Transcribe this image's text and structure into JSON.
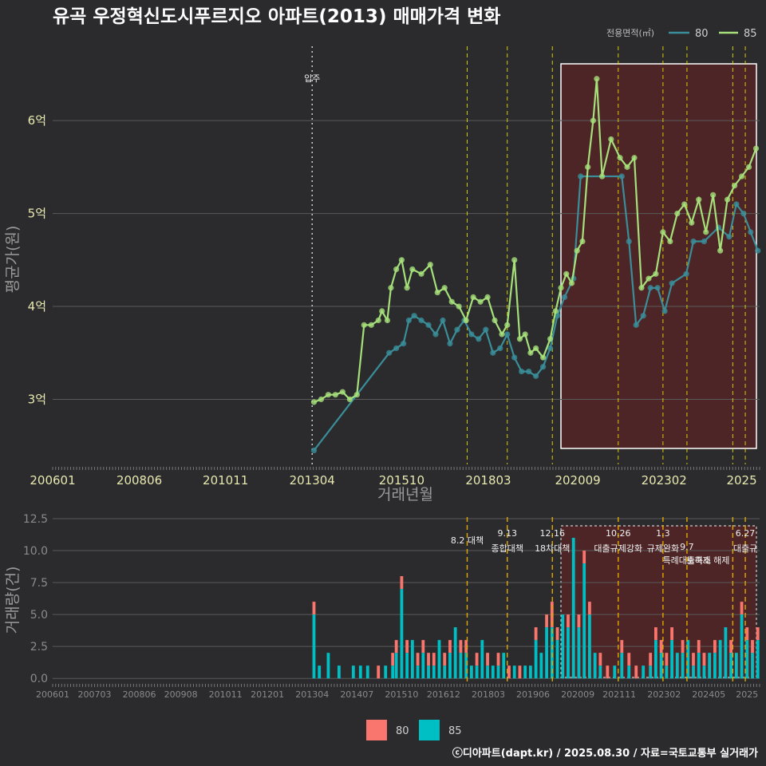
{
  "title": "유곡 우정혁신도시푸르지오 아파트(2013) 매매가격 변화",
  "footer": "ⓒ디아파트(dapt.kr) / 2025.08.30 / 자료=국토교통부 실거래가",
  "colors": {
    "background": "#2b2b2d",
    "series80": "#3a8e9a",
    "series85": "#a6e07a",
    "bar80": "#f8766d",
    "bar85": "#00bfc4",
    "policy_line": "#f5e400",
    "highlight_fill": "#5a2424"
  },
  "chart_data": [
    {
      "type": "line",
      "name": "price",
      "ylabel": "평균가(원)",
      "xlabel": "거래년월",
      "x_ticks": [
        "200601",
        "200806",
        "201011",
        "201304",
        "201510",
        "201803",
        "202009",
        "202302",
        "2025"
      ],
      "y_ticks": [
        "3억",
        "4억",
        "5억",
        "6억"
      ],
      "y_tick_values": [
        3.0,
        4.0,
        5.0,
        6.0
      ],
      "y_range": [
        2.3,
        6.8
      ],
      "x_range": [
        2006.0,
        2025.75
      ],
      "legend_title": "전용면적(㎡)",
      "legend": [
        "80",
        "85"
      ],
      "move_in_label": "입주",
      "move_in_x": 2013.25,
      "policy_x": [
        2017.58,
        2018.7,
        2019.96,
        2021.8,
        2023.05,
        2023.72,
        2025.0,
        2025.35
      ],
      "highlight_range": [
        2020.2,
        2025.75
      ],
      "series": [
        {
          "name": "80",
          "points": [
            [
              2013.3,
              2.45
            ],
            [
              2015.4,
              3.5
            ],
            [
              2015.6,
              3.55
            ],
            [
              2015.8,
              3.6
            ],
            [
              2015.95,
              3.85
            ],
            [
              2016.1,
              3.9
            ],
            [
              2016.3,
              3.85
            ],
            [
              2016.5,
              3.8
            ],
            [
              2016.7,
              3.7
            ],
            [
              2016.9,
              3.85
            ],
            [
              2017.1,
              3.6
            ],
            [
              2017.3,
              3.75
            ],
            [
              2017.5,
              3.85
            ],
            [
              2017.7,
              3.7
            ],
            [
              2017.9,
              3.65
            ],
            [
              2018.1,
              3.75
            ],
            [
              2018.3,
              3.5
            ],
            [
              2018.5,
              3.55
            ],
            [
              2018.7,
              3.7
            ],
            [
              2018.9,
              3.45
            ],
            [
              2019.1,
              3.3
            ],
            [
              2019.3,
              3.3
            ],
            [
              2019.5,
              3.25
            ],
            [
              2019.7,
              3.35
            ],
            [
              2019.9,
              3.55
            ],
            [
              2020.1,
              3.9
            ],
            [
              2020.3,
              4.1
            ],
            [
              2020.55,
              4.3
            ],
            [
              2020.75,
              5.4
            ],
            [
              2021.9,
              5.4
            ],
            [
              2022.1,
              4.7
            ],
            [
              2022.3,
              3.8
            ],
            [
              2022.5,
              3.9
            ],
            [
              2022.7,
              4.2
            ],
            [
              2022.9,
              4.2
            ],
            [
              2023.1,
              3.95
            ],
            [
              2023.3,
              4.25
            ],
            [
              2023.7,
              4.35
            ],
            [
              2023.9,
              4.7
            ],
            [
              2024.2,
              4.7
            ],
            [
              2024.6,
              4.85
            ],
            [
              2024.9,
              4.75
            ],
            [
              2025.1,
              5.1
            ],
            [
              2025.3,
              5.0
            ],
            [
              2025.5,
              4.8
            ],
            [
              2025.7,
              4.6
            ]
          ]
        },
        {
          "name": "85",
          "points": [
            [
              2013.3,
              2.97
            ],
            [
              2013.5,
              3.0
            ],
            [
              2013.7,
              3.05
            ],
            [
              2013.9,
              3.05
            ],
            [
              2014.1,
              3.08
            ],
            [
              2014.3,
              3.0
            ],
            [
              2014.5,
              3.05
            ],
            [
              2014.7,
              3.8
            ],
            [
              2014.9,
              3.8
            ],
            [
              2015.1,
              3.85
            ],
            [
              2015.2,
              3.95
            ],
            [
              2015.35,
              3.85
            ],
            [
              2015.45,
              4.2
            ],
            [
              2015.6,
              4.4
            ],
            [
              2015.75,
              4.5
            ],
            [
              2015.9,
              4.2
            ],
            [
              2016.05,
              4.4
            ],
            [
              2016.3,
              4.35
            ],
            [
              2016.55,
              4.45
            ],
            [
              2016.75,
              4.15
            ],
            [
              2016.95,
              4.2
            ],
            [
              2017.15,
              4.05
            ],
            [
              2017.35,
              4.0
            ],
            [
              2017.55,
              3.85
            ],
            [
              2017.75,
              4.1
            ],
            [
              2017.95,
              4.05
            ],
            [
              2018.15,
              4.1
            ],
            [
              2018.35,
              3.85
            ],
            [
              2018.55,
              3.7
            ],
            [
              2018.7,
              3.8
            ],
            [
              2018.9,
              4.5
            ],
            [
              2019.05,
              3.65
            ],
            [
              2019.2,
              3.7
            ],
            [
              2019.35,
              3.5
            ],
            [
              2019.5,
              3.55
            ],
            [
              2019.7,
              3.45
            ],
            [
              2019.9,
              3.65
            ],
            [
              2020.05,
              3.95
            ],
            [
              2020.2,
              4.2
            ],
            [
              2020.35,
              4.35
            ],
            [
              2020.5,
              4.25
            ],
            [
              2020.65,
              4.6
            ],
            [
              2020.8,
              4.7
            ],
            [
              2020.95,
              5.5
            ],
            [
              2021.1,
              6.0
            ],
            [
              2021.2,
              6.45
            ],
            [
              2021.35,
              5.4
            ],
            [
              2021.6,
              5.8
            ],
            [
              2021.85,
              5.6
            ],
            [
              2022.05,
              5.5
            ],
            [
              2022.25,
              5.6
            ],
            [
              2022.45,
              4.2
            ],
            [
              2022.65,
              4.3
            ],
            [
              2022.85,
              4.35
            ],
            [
              2023.05,
              4.8
            ],
            [
              2023.25,
              4.7
            ],
            [
              2023.45,
              5.0
            ],
            [
              2023.65,
              5.1
            ],
            [
              2023.85,
              4.9
            ],
            [
              2024.05,
              5.15
            ],
            [
              2024.25,
              4.8
            ],
            [
              2024.45,
              5.2
            ],
            [
              2024.65,
              4.6
            ],
            [
              2024.85,
              5.15
            ],
            [
              2025.05,
              5.3
            ],
            [
              2025.25,
              5.4
            ],
            [
              2025.45,
              5.5
            ],
            [
              2025.65,
              5.7
            ]
          ]
        }
      ]
    },
    {
      "type": "bar",
      "name": "volume",
      "ylabel": "거래량(건)",
      "y_ticks": [
        "0.0",
        "2.5",
        "5.0",
        "7.5",
        "10.0",
        "12.5"
      ],
      "y_tick_values": [
        0,
        2.5,
        5,
        7.5,
        10,
        12.5
      ],
      "y_range": [
        -0.3,
        13
      ],
      "x_ticks": [
        "200601",
        "200703",
        "200806",
        "200908",
        "201011",
        "201201",
        "201304",
        "201407",
        "201510",
        "201612",
        "201803",
        "201906",
        "202009",
        "202111",
        "202302",
        "202405",
        "2025"
      ],
      "legend": [
        "80",
        "85"
      ],
      "policies": [
        {
          "date": "8.2",
          "label": "8.2 대책"
        },
        {
          "date": "9.13",
          "label": "종합대책"
        },
        {
          "date": "12.16",
          "label": "18차대책"
        },
        {
          "date": "10.26",
          "label": "대출규제강화"
        },
        {
          "date": "1.3",
          "label": "규제완화"
        },
        {
          "date": "9.7",
          "label": "특례대출축소"
        },
        {
          "date": "토허제 해제",
          "label": "토허제 해제"
        },
        {
          "date": "6.27",
          "label": "대출규"
        }
      ],
      "bars": [
        {
          "x": 2013.3,
          "s80": 1,
          "s85": 5
        },
        {
          "x": 2013.45,
          "s80": 0,
          "s85": 1
        },
        {
          "x": 2013.7,
          "s80": 0,
          "s85": 2
        },
        {
          "x": 2014.0,
          "s80": 0,
          "s85": 1
        },
        {
          "x": 2014.4,
          "s80": 0,
          "s85": 1
        },
        {
          "x": 2014.6,
          "s80": 0,
          "s85": 1
        },
        {
          "x": 2014.8,
          "s80": 0,
          "s85": 1
        },
        {
          "x": 2015.1,
          "s80": 1,
          "s85": 0
        },
        {
          "x": 2015.3,
          "s80": 0,
          "s85": 1
        },
        {
          "x": 2015.5,
          "s80": 1,
          "s85": 1
        },
        {
          "x": 2015.6,
          "s80": 1,
          "s85": 2
        },
        {
          "x": 2015.75,
          "s80": 1,
          "s85": 7
        },
        {
          "x": 2015.9,
          "s80": 1,
          "s85": 2
        },
        {
          "x": 2016.05,
          "s80": 0,
          "s85": 3
        },
        {
          "x": 2016.2,
          "s80": 1,
          "s85": 1
        },
        {
          "x": 2016.35,
          "s80": 1,
          "s85": 2
        },
        {
          "x": 2016.5,
          "s80": 1,
          "s85": 1
        },
        {
          "x": 2016.65,
          "s80": 1,
          "s85": 1
        },
        {
          "x": 2016.8,
          "s80": 0,
          "s85": 3
        },
        {
          "x": 2016.95,
          "s80": 1,
          "s85": 1
        },
        {
          "x": 2017.1,
          "s80": 1,
          "s85": 2
        },
        {
          "x": 2017.25,
          "s80": 0,
          "s85": 4
        },
        {
          "x": 2017.4,
          "s80": 1,
          "s85": 2
        },
        {
          "x": 2017.55,
          "s80": 1,
          "s85": 2
        },
        {
          "x": 2017.7,
          "s80": 0,
          "s85": 1
        },
        {
          "x": 2017.85,
          "s80": 1,
          "s85": 1
        },
        {
          "x": 2018.0,
          "s80": 0,
          "s85": 3
        },
        {
          "x": 2018.15,
          "s80": 1,
          "s85": 1
        },
        {
          "x": 2018.3,
          "s80": 0,
          "s85": 1
        },
        {
          "x": 2018.45,
          "s80": 1,
          "s85": 1
        },
        {
          "x": 2018.6,
          "s80": 0,
          "s85": 2
        },
        {
          "x": 2018.75,
          "s80": 1,
          "s85": 0
        },
        {
          "x": 2018.9,
          "s80": 0,
          "s85": 1
        },
        {
          "x": 2019.05,
          "s80": 1,
          "s85": 0
        },
        {
          "x": 2019.2,
          "s80": 0,
          "s85": 1
        },
        {
          "x": 2019.35,
          "s80": 0,
          "s85": 1
        },
        {
          "x": 2019.5,
          "s80": 1,
          "s85": 3
        },
        {
          "x": 2019.65,
          "s80": 0,
          "s85": 2
        },
        {
          "x": 2019.8,
          "s80": 1,
          "s85": 4
        },
        {
          "x": 2019.95,
          "s80": 2,
          "s85": 4
        },
        {
          "x": 2020.1,
          "s80": 1,
          "s85": 3
        },
        {
          "x": 2020.25,
          "s80": 0,
          "s85": 5
        },
        {
          "x": 2020.4,
          "s80": 1,
          "s85": 4
        },
        {
          "x": 2020.55,
          "s80": 0,
          "s85": 11
        },
        {
          "x": 2020.7,
          "s80": 1,
          "s85": 4
        },
        {
          "x": 2020.85,
          "s80": 1,
          "s85": 9
        },
        {
          "x": 2021.0,
          "s80": 1,
          "s85": 5
        },
        {
          "x": 2021.15,
          "s80": 0,
          "s85": 2
        },
        {
          "x": 2021.3,
          "s80": 1,
          "s85": 1
        },
        {
          "x": 2021.5,
          "s80": 1,
          "s85": 0
        },
        {
          "x": 2021.7,
          "s80": 0,
          "s85": 1
        },
        {
          "x": 2021.9,
          "s80": 1,
          "s85": 2
        },
        {
          "x": 2022.1,
          "s80": 1,
          "s85": 1
        },
        {
          "x": 2022.3,
          "s80": 1,
          "s85": 0
        },
        {
          "x": 2022.5,
          "s80": 0,
          "s85": 1
        },
        {
          "x": 2022.7,
          "s80": 1,
          "s85": 1
        },
        {
          "x": 2022.85,
          "s80": 1,
          "s85": 3
        },
        {
          "x": 2023.0,
          "s80": 1,
          "s85": 2
        },
        {
          "x": 2023.15,
          "s80": 1,
          "s85": 1
        },
        {
          "x": 2023.3,
          "s80": 1,
          "s85": 3
        },
        {
          "x": 2023.45,
          "s80": 0,
          "s85": 2
        },
        {
          "x": 2023.6,
          "s80": 1,
          "s85": 2
        },
        {
          "x": 2023.75,
          "s80": 0,
          "s85": 3
        },
        {
          "x": 2023.9,
          "s80": 1,
          "s85": 1
        },
        {
          "x": 2024.05,
          "s80": 1,
          "s85": 2
        },
        {
          "x": 2024.2,
          "s80": 1,
          "s85": 1
        },
        {
          "x": 2024.35,
          "s80": 0,
          "s85": 2
        },
        {
          "x": 2024.5,
          "s80": 1,
          "s85": 2
        },
        {
          "x": 2024.65,
          "s80": 0,
          "s85": 3
        },
        {
          "x": 2024.8,
          "s80": 0,
          "s85": 4
        },
        {
          "x": 2024.95,
          "s80": 1,
          "s85": 2
        },
        {
          "x": 2025.1,
          "s80": 0,
          "s85": 2
        },
        {
          "x": 2025.25,
          "s80": 1,
          "s85": 5
        },
        {
          "x": 2025.4,
          "s80": 1,
          "s85": 3
        },
        {
          "x": 2025.55,
          "s80": 1,
          "s85": 2
        },
        {
          "x": 2025.7,
          "s80": 1,
          "s85": 3
        }
      ]
    }
  ]
}
